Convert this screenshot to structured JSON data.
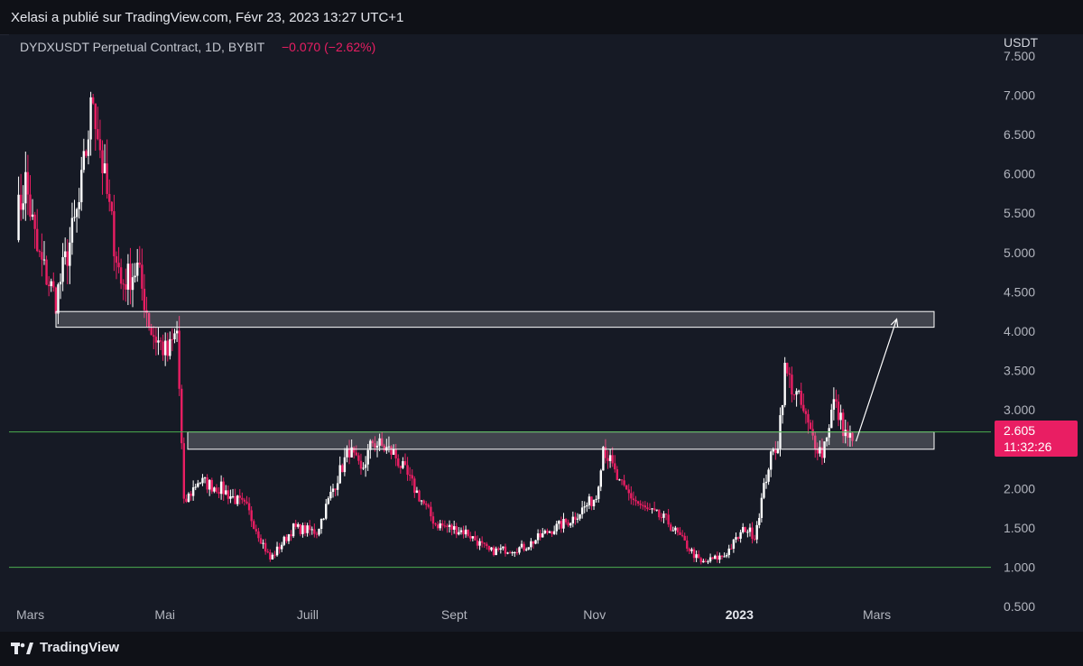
{
  "header": {
    "publish_line": "Xelasi a publié sur TradingView.com, Févr 23, 2023 13:27 UTC+1"
  },
  "legend": {
    "symbol": "DYDXUSDT Perpetual Contract, 1D, BYBIT",
    "change": "−0.070 (−2.62%)"
  },
  "price_axis": {
    "currency": "USDT",
    "ticks": [
      "7.500",
      "7.000",
      "6.500",
      "6.000",
      "5.500",
      "5.000",
      "4.500",
      "4.000",
      "3.500",
      "3.000",
      "2.500",
      "2.000",
      "1.500",
      "1.000",
      "0.500"
    ]
  },
  "time_axis": {
    "labels": [
      "Mars",
      "Mai",
      "Juill",
      "Sept",
      "Nov",
      "2023",
      "Mars"
    ]
  },
  "price_tag": {
    "price": "2.605",
    "countdown": "11:32:26"
  },
  "footer": {
    "brand": "TradingView"
  },
  "colors": {
    "background": "#161a25",
    "up_candle": "#ffffff",
    "down_candle": "#e91e63",
    "support_line": "#4caf50",
    "zone_fill": "#d9dbe0",
    "price_tag": "#e91e63"
  },
  "chart_data": {
    "type": "candlestick",
    "symbol": "DYDXUSDT Perpetual Contract",
    "interval": "1D",
    "exchange": "BYBIT",
    "ylim": [
      0.25,
      7.75
    ],
    "last_price": 2.605,
    "x_labels": [
      "Mars",
      "Mai",
      "Juill",
      "Sept",
      "Nov",
      "2023",
      "Mars"
    ],
    "price_path": [
      [
        "2022-03-01",
        5.4
      ],
      [
        "2022-03-05",
        5.9
      ],
      [
        "2022-03-10",
        5.0
      ],
      [
        "2022-03-18",
        4.4
      ],
      [
        "2022-03-28",
        5.6
      ],
      [
        "2022-04-03",
        7.0
      ],
      [
        "2022-04-08",
        5.9
      ],
      [
        "2022-04-15",
        4.6
      ],
      [
        "2022-04-22",
        4.8
      ],
      [
        "2022-04-28",
        4.0
      ],
      [
        "2022-05-05",
        3.7
      ],
      [
        "2022-05-09",
        4.0
      ],
      [
        "2022-05-12",
        1.8
      ],
      [
        "2022-05-18",
        2.1
      ],
      [
        "2022-05-28",
        2.0
      ],
      [
        "2022-06-08",
        1.75
      ],
      [
        "2022-06-18",
        1.1
      ],
      [
        "2022-06-28",
        1.5
      ],
      [
        "2022-07-08",
        1.45
      ],
      [
        "2022-07-15",
        2.0
      ],
      [
        "2022-07-22",
        2.5
      ],
      [
        "2022-07-27",
        2.2
      ],
      [
        "2022-08-01",
        2.6
      ],
      [
        "2022-08-10",
        2.45
      ],
      [
        "2022-08-20",
        1.95
      ],
      [
        "2022-08-28",
        1.55
      ],
      [
        "2022-09-10",
        1.45
      ],
      [
        "2022-09-20",
        1.2
      ],
      [
        "2022-10-05",
        1.25
      ],
      [
        "2022-10-15",
        1.45
      ],
      [
        "2022-10-25",
        1.6
      ],
      [
        "2022-11-05",
        1.9
      ],
      [
        "2022-11-08",
        2.55
      ],
      [
        "2022-11-15",
        2.05
      ],
      [
        "2022-11-25",
        1.75
      ],
      [
        "2022-12-05",
        1.6
      ],
      [
        "2022-12-20",
        1.05
      ],
      [
        "2022-12-30",
        1.15
      ],
      [
        "2023-01-08",
        1.5
      ],
      [
        "2023-01-12",
        1.4
      ],
      [
        "2023-01-18",
        2.3
      ],
      [
        "2023-01-22",
        2.6
      ],
      [
        "2023-01-25",
        3.5
      ],
      [
        "2023-02-01",
        3.05
      ],
      [
        "2023-02-05",
        2.7
      ],
      [
        "2023-02-10",
        2.45
      ],
      [
        "2023-02-15",
        3.1
      ],
      [
        "2023-02-20",
        2.7
      ],
      [
        "2023-02-23",
        2.605
      ]
    ],
    "annotations": {
      "resistance_zone": [
        4.05,
        4.25
      ],
      "support_zone": [
        2.5,
        2.72
      ],
      "horizontal_lines": [
        2.72,
        1.0
      ],
      "arrow": {
        "from": [
          "2023-02-23",
          2.6
        ],
        "to": [
          "2023-03-14",
          4.2
        ]
      }
    }
  }
}
